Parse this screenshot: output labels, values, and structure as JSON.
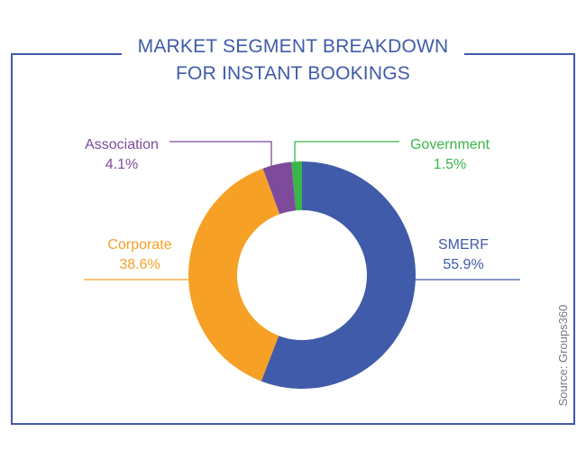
{
  "chart_data": {
    "type": "pie",
    "title_lines": [
      "MARKET SEGMENT BREAKDOWN",
      "FOR INSTANT BOOKINGS"
    ],
    "source": "Source: Groups360",
    "slices": [
      {
        "name": "SMERF",
        "value": 55.9,
        "label": "55.9%",
        "color": "#3f5ba9"
      },
      {
        "name": "Corporate",
        "value": 38.6,
        "label": "38.6%",
        "color": "#f6a026"
      },
      {
        "name": "Association",
        "value": 4.1,
        "label": "4.1%",
        "color": "#7e4a9c"
      },
      {
        "name": "Government",
        "value": 1.5,
        "label": "1.5%",
        "color": "#3ab54a"
      }
    ],
    "frame_color": "#3f5ba9",
    "legend": "none"
  }
}
